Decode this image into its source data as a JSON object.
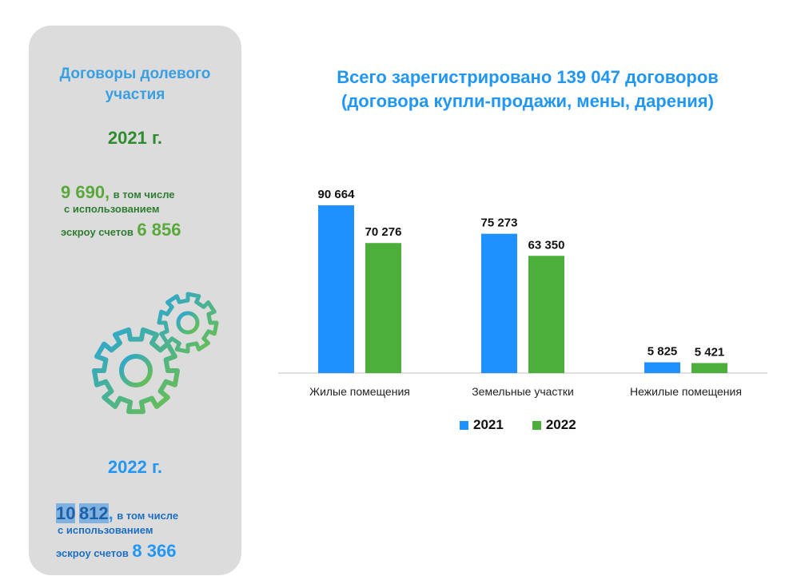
{
  "panel": {
    "title_line1": "Договоры долевого",
    "title_line2": "участия",
    "y2021": {
      "label": "2021 г.",
      "total": "9 690,",
      "text1": "в том числе",
      "text2": "с использованием",
      "text3": "эскроу счетов",
      "escrow": "6 856"
    },
    "y2022": {
      "label": "2022 г.",
      "total_part1": "10",
      "total_part2": "812",
      "total_comma": ",",
      "text1": "в том числе",
      "text2": "с использованием",
      "text3": "эскроу счетов",
      "escrow": "8 366"
    },
    "icon": "gears-icon"
  },
  "chart_title_line1": "Всего зарегистрировано 139 047 договоров",
  "chart_title_line2": "(договора купли-продажи, мены, дарения)",
  "colors": {
    "s2021": "#1e90ff",
    "s2022": "#4caf3c",
    "panel": "#dcdcdc"
  },
  "chart_data": {
    "type": "bar",
    "categories": [
      "Жилые помещения",
      "Земельные участки",
      "Нежилые помещения"
    ],
    "series": [
      {
        "name": "2021",
        "values": [
          90664,
          75273,
          5825
        ],
        "labels": [
          "90 664",
          "75 273",
          "5 825"
        ]
      },
      {
        "name": "2022",
        "values": [
          70276,
          63350,
          5421
        ],
        "labels": [
          "70 276",
          "63 350",
          "5 421"
        ]
      }
    ],
    "ylim": [
      0,
      100000
    ],
    "grid": false,
    "legend": "bottom"
  }
}
